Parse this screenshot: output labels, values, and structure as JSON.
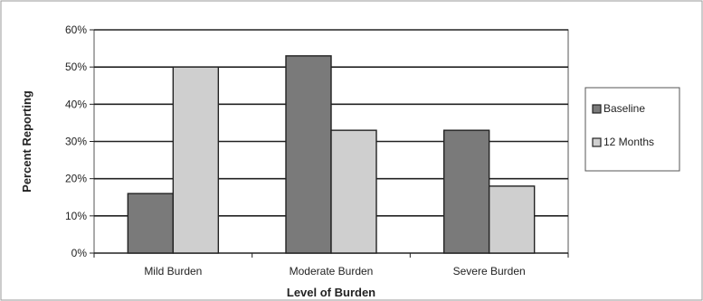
{
  "chart_data": {
    "type": "bar",
    "categories": [
      "Mild Burden",
      "Moderate Burden",
      "Severe Burden"
    ],
    "series": [
      {
        "name": "Baseline",
        "values": [
          16,
          53,
          33
        ],
        "color": "#7a7a7a"
      },
      {
        "name": "12 Months",
        "values": [
          50,
          33,
          18
        ],
        "color": "#cfcfcf"
      }
    ],
    "xlabel": "Level of Burden",
    "ylabel": "Percent Reporting",
    "ylim": [
      0,
      60
    ],
    "yticks": [
      0,
      10,
      20,
      30,
      40,
      50,
      60
    ],
    "ytick_labels": [
      "0%",
      "10%",
      "20%",
      "30%",
      "40%",
      "50%",
      "60%"
    ],
    "grid": true,
    "legend": "right"
  }
}
